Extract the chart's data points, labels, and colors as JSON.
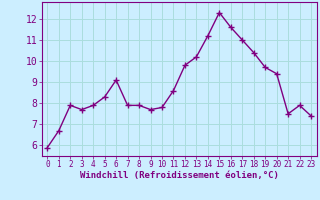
{
  "x": [
    0,
    1,
    2,
    3,
    4,
    5,
    6,
    7,
    8,
    9,
    10,
    11,
    12,
    13,
    14,
    15,
    16,
    17,
    18,
    19,
    20,
    21,
    22,
    23
  ],
  "y": [
    5.9,
    6.7,
    7.9,
    7.7,
    7.9,
    8.3,
    9.1,
    7.9,
    7.9,
    7.7,
    7.8,
    8.6,
    9.8,
    10.2,
    11.2,
    12.3,
    11.6,
    11.0,
    10.4,
    9.7,
    9.4,
    7.5,
    7.9,
    7.4
  ],
  "line_color": "#800080",
  "marker": "+",
  "marker_color": "#800080",
  "bg_color": "#cceeff",
  "grid_color": "#aadddd",
  "xlabel": "Windchill (Refroidissement éolien,°C)",
  "ylim": [
    5.5,
    12.8
  ],
  "xlim": [
    -0.5,
    23.5
  ],
  "yticks": [
    6,
    7,
    8,
    9,
    10,
    11,
    12
  ],
  "xticks": [
    0,
    1,
    2,
    3,
    4,
    5,
    6,
    7,
    8,
    9,
    10,
    11,
    12,
    13,
    14,
    15,
    16,
    17,
    18,
    19,
    20,
    21,
    22,
    23
  ],
  "tick_color": "#800080",
  "spine_color": "#800080",
  "font_color": "#800080",
  "linewidth": 1.0,
  "markersize": 4
}
